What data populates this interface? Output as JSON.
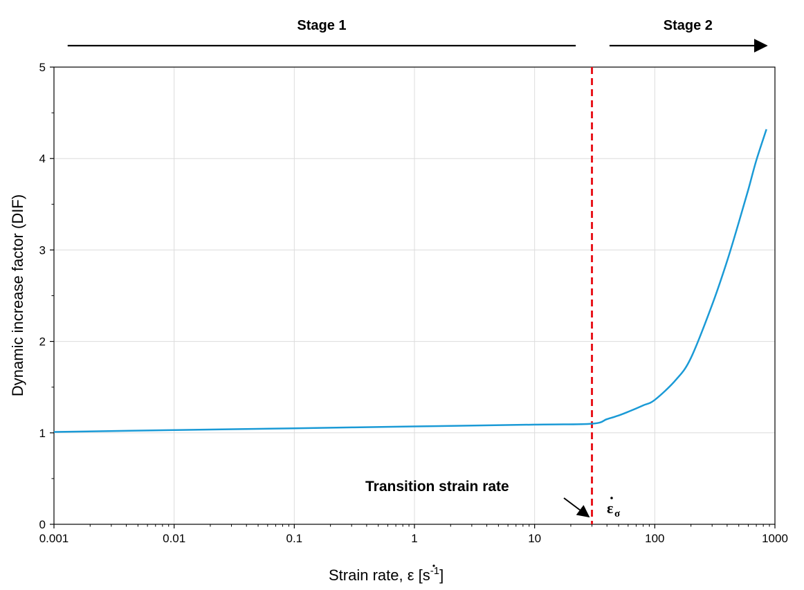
{
  "chart_data": {
    "type": "line",
    "xscale": "log",
    "xlim": [
      0.001,
      1000
    ],
    "ylim": [
      0,
      5
    ],
    "grid": true,
    "xticks": [
      "0.001",
      "0.01",
      "0.1",
      "1",
      "10",
      "100",
      "1000"
    ],
    "xtick_values": [
      0.001,
      0.01,
      0.1,
      1,
      10,
      100,
      1000
    ],
    "yticks": [
      "0",
      "1",
      "2",
      "3",
      "4",
      "5"
    ],
    "ytick_values": [
      0,
      1,
      2,
      3,
      4,
      5
    ],
    "xlabel_prefix": "Strain rate, ",
    "xlabel_symbol": "ε",
    "xlabel_unit_open": " [s",
    "xlabel_unit_exp": "-1",
    "xlabel_unit_close": "]",
    "ylabel": "Dynamic increase factor (DIF)",
    "series": [
      {
        "color": "#1a9ad6",
        "x": [
          0.001,
          0.01,
          0.1,
          1,
          10,
          30,
          40,
          50,
          60,
          80,
          100,
          150,
          200,
          300,
          400,
          500,
          600,
          700,
          850
        ],
        "y": [
          1.01,
          1.03,
          1.05,
          1.07,
          1.09,
          1.1,
          1.15,
          1.19,
          1.23,
          1.3,
          1.36,
          1.58,
          1.82,
          2.4,
          2.88,
          3.3,
          3.66,
          3.98,
          4.32
        ]
      }
    ],
    "transition": {
      "x": 30,
      "color": "#e8141b",
      "label": "Transition strain rate",
      "symbol": "ε",
      "subscript": "σ"
    },
    "stages": [
      {
        "label": "Stage 1",
        "from": 0.0013,
        "to": 22
      },
      {
        "label": "Stage 2",
        "from": 42,
        "to": 850
      }
    ]
  }
}
